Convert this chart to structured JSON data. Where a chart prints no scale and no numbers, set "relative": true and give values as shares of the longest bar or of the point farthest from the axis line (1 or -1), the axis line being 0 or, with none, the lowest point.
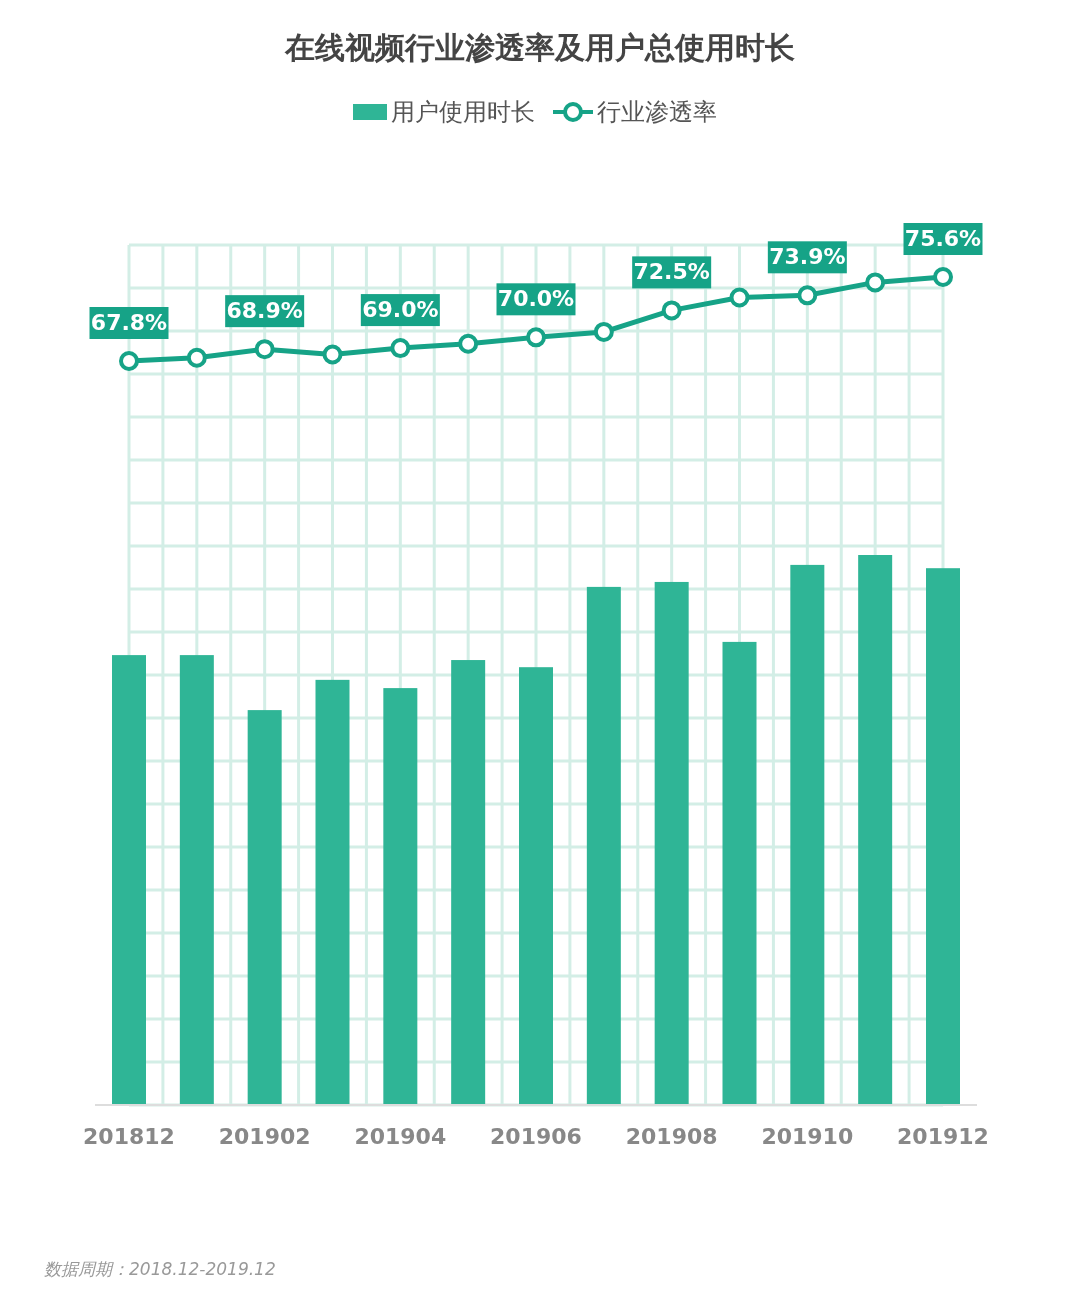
{
  "chart_data": [
    {
      "type": "bar",
      "relative": true,
      "grid": true,
      "legend": "top",
      "categories": [
        "201812",
        null,
        "201902",
        null,
        "201904",
        null,
        "201906",
        null,
        "201908",
        null,
        "201910",
        null,
        "201912"
      ],
      "series": [
        {
          "name": "用户使用时长",
          "color": "#2fb596",
          "values": [
            0.818,
            0.818,
            0.718,
            0.773,
            0.758,
            0.809,
            0.796,
            0.942,
            0.951,
            0.842,
            0.982,
            1,
            0.976
          ]
        }
      ],
      "annotations": [
        "数据周期：2018.12-2019.12"
      ]
    },
    {
      "type": "line",
      "title": "在线视频行业渗透率及用户总使用时长",
      "legend": "top",
      "marker": "circle",
      "line_style": "solid",
      "categories": [
        null,
        null,
        null,
        null,
        null,
        null,
        null,
        null,
        null,
        null,
        null,
        null,
        null
      ],
      "series": [
        {
          "name": "行业渗透率",
          "color": "#16a387",
          "values": [
            67.8,
            68.1,
            68.9,
            68.4,
            69.0,
            69.4,
            70.0,
            70.5,
            72.5,
            73.7,
            73.9,
            75.1,
            75.6
          ],
          "value_labels": [
            "67.8%",
            null,
            "68.9%",
            null,
            "69.0%",
            null,
            "70.0%",
            null,
            "72.5%",
            null,
            "73.9%",
            null,
            "75.6%"
          ]
        }
      ]
    }
  ]
}
